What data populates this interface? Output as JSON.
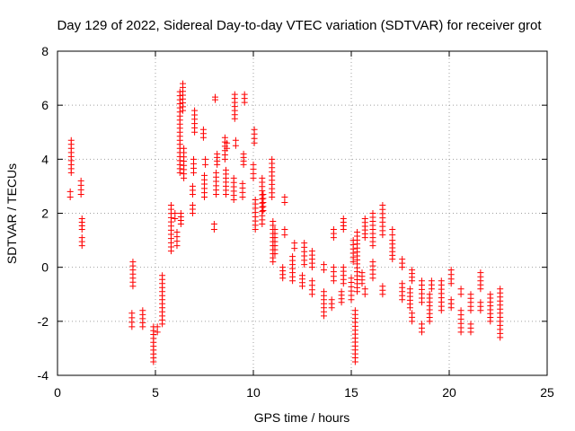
{
  "chart_data": {
    "type": "scatter",
    "title": "Day 129 of 2022, Sidereal Day-to-day VTEC variation (SDTVAR) for receiver grot",
    "xlabel": "GPS time / hours",
    "ylabel": "SDTVAR / TECUs",
    "xlim": [
      0,
      25
    ],
    "ylim": [
      -4,
      8
    ],
    "xticks": [
      0,
      5,
      10,
      15,
      20,
      25
    ],
    "yticks": [
      -4,
      -2,
      0,
      2,
      4,
      6,
      8
    ],
    "xtick_labels": [
      "0",
      "5",
      "10",
      "15",
      "20",
      "25"
    ],
    "ytick_labels": [
      "-4",
      "-2",
      "0",
      "2",
      "4",
      "6",
      "8"
    ],
    "grid": true,
    "marker": "plus",
    "color": "#ff0000",
    "segments": [
      {
        "x": 0.65,
        "y_from": 2.6,
        "y_to": 2.8
      },
      {
        "x": 0.7,
        "y_from": 3.5,
        "y_to": 4.7
      },
      {
        "x": 1.2,
        "y_from": 2.7,
        "y_to": 3.2
      },
      {
        "x": 1.25,
        "y_from": 1.4,
        "y_to": 1.8
      },
      {
        "x": 1.25,
        "y_from": 0.8,
        "y_to": 1.1
      },
      {
        "x": 3.85,
        "y_from": -0.7,
        "y_to": 0.2
      },
      {
        "x": 3.8,
        "y_from": -2.2,
        "y_to": -1.7
      },
      {
        "x": 4.35,
        "y_from": -2.2,
        "y_to": -1.6
      },
      {
        "x": 4.9,
        "y_from": -3.5,
        "y_to": -2.2
      },
      {
        "x": 5.1,
        "y_from": -2.4,
        "y_to": -2.2
      },
      {
        "x": 5.35,
        "y_from": -2.1,
        "y_to": -0.3
      },
      {
        "x": 5.8,
        "y_from": 0.6,
        "y_to": 2.3
      },
      {
        "x": 6.0,
        "y_from": 1.8,
        "y_to": 2.0
      },
      {
        "x": 6.1,
        "y_from": 0.8,
        "y_to": 1.3
      },
      {
        "x": 6.25,
        "y_from": 3.5,
        "y_to": 6.5
      },
      {
        "x": 6.4,
        "y_from": 5.8,
        "y_to": 6.8
      },
      {
        "x": 6.45,
        "y_from": 3.3,
        "y_to": 4.4
      },
      {
        "x": 6.3,
        "y_from": 1.6,
        "y_to": 2.0
      },
      {
        "x": 6.9,
        "y_from": 2.0,
        "y_to": 2.3
      },
      {
        "x": 6.9,
        "y_from": 2.7,
        "y_to": 3.0
      },
      {
        "x": 6.95,
        "y_from": 3.5,
        "y_to": 4.0
      },
      {
        "x": 7.0,
        "y_from": 5.0,
        "y_to": 5.8
      },
      {
        "x": 7.45,
        "y_from": 4.8,
        "y_to": 5.1
      },
      {
        "x": 7.5,
        "y_from": 2.6,
        "y_to": 3.4
      },
      {
        "x": 7.55,
        "y_from": 3.8,
        "y_to": 4.0
      },
      {
        "x": 8.0,
        "y_from": 1.4,
        "y_to": 1.6
      },
      {
        "x": 8.1,
        "y_from": 2.7,
        "y_to": 3.5
      },
      {
        "x": 8.15,
        "y_from": 3.8,
        "y_to": 4.2
      },
      {
        "x": 8.05,
        "y_from": 6.2,
        "y_to": 6.3
      },
      {
        "x": 8.55,
        "y_from": 4.0,
        "y_to": 4.8
      },
      {
        "x": 8.6,
        "y_from": 2.7,
        "y_to": 3.6
      },
      {
        "x": 8.65,
        "y_from": 4.4,
        "y_to": 4.6
      },
      {
        "x": 9.0,
        "y_from": 2.5,
        "y_to": 3.3
      },
      {
        "x": 9.05,
        "y_from": 5.5,
        "y_to": 6.4
      },
      {
        "x": 9.1,
        "y_from": 4.5,
        "y_to": 4.7
      },
      {
        "x": 9.45,
        "y_from": 2.6,
        "y_to": 3.1
      },
      {
        "x": 9.5,
        "y_from": 3.8,
        "y_to": 4.2
      },
      {
        "x": 9.55,
        "y_from": 6.1,
        "y_to": 6.4
      },
      {
        "x": 10.0,
        "y_from": 3.3,
        "y_to": 3.8
      },
      {
        "x": 10.05,
        "y_from": 4.6,
        "y_to": 5.1
      },
      {
        "x": 10.1,
        "y_from": 1.4,
        "y_to": 2.5
      },
      {
        "x": 10.45,
        "y_from": 1.6,
        "y_to": 3.3
      },
      {
        "x": 10.5,
        "y_from": 2.1,
        "y_to": 2.7
      },
      {
        "x": 10.95,
        "y_from": 2.6,
        "y_to": 4.0
      },
      {
        "x": 11.0,
        "y_from": 0.2,
        "y_to": 1.7
      },
      {
        "x": 11.1,
        "y_from": 0.5,
        "y_to": 1.4
      },
      {
        "x": 11.5,
        "y_from": -0.4,
        "y_to": 0.0
      },
      {
        "x": 11.6,
        "y_from": 1.2,
        "y_to": 1.4
      },
      {
        "x": 11.6,
        "y_from": 2.4,
        "y_to": 2.6
      },
      {
        "x": 12.0,
        "y_from": -0.5,
        "y_to": 0.4
      },
      {
        "x": 12.1,
        "y_from": 0.7,
        "y_to": 0.9
      },
      {
        "x": 12.5,
        "y_from": -0.7,
        "y_to": -0.3
      },
      {
        "x": 12.6,
        "y_from": 0.1,
        "y_to": 0.9
      },
      {
        "x": 13.0,
        "y_from": -1.0,
        "y_to": -0.5
      },
      {
        "x": 13.0,
        "y_from": 0.0,
        "y_to": 0.6
      },
      {
        "x": 13.6,
        "y_from": -1.8,
        "y_to": -0.9
      },
      {
        "x": 13.6,
        "y_from": -0.1,
        "y_to": 0.1
      },
      {
        "x": 14.0,
        "y_from": -1.5,
        "y_to": -1.2
      },
      {
        "x": 14.1,
        "y_from": -0.5,
        "y_to": 0.0
      },
      {
        "x": 14.1,
        "y_from": 1.1,
        "y_to": 1.4
      },
      {
        "x": 14.5,
        "y_from": -1.3,
        "y_to": -0.9
      },
      {
        "x": 14.6,
        "y_from": -0.6,
        "y_to": 0.0
      },
      {
        "x": 14.6,
        "y_from": 1.4,
        "y_to": 1.8
      },
      {
        "x": 15.0,
        "y_from": -1.2,
        "y_to": -0.4
      },
      {
        "x": 15.1,
        "y_from": 0.2,
        "y_to": 1.0
      },
      {
        "x": 15.2,
        "y_from": -3.5,
        "y_to": -1.6
      },
      {
        "x": 15.3,
        "y_from": -0.9,
        "y_to": 1.3
      },
      {
        "x": 15.55,
        "y_from": -0.6,
        "y_to": -0.2
      },
      {
        "x": 15.7,
        "y_from": 1.1,
        "y_to": 1.8
      },
      {
        "x": 15.7,
        "y_from": -1.0,
        "y_to": -0.8
      },
      {
        "x": 16.1,
        "y_from": -0.4,
        "y_to": 0.2
      },
      {
        "x": 16.1,
        "y_from": 0.8,
        "y_to": 2.0
      },
      {
        "x": 16.6,
        "y_from": 1.2,
        "y_to": 2.3
      },
      {
        "x": 16.6,
        "y_from": -1.0,
        "y_to": -0.7
      },
      {
        "x": 17.1,
        "y_from": 0.3,
        "y_to": 1.0
      },
      {
        "x": 17.1,
        "y_from": 1.2,
        "y_to": 1.4
      },
      {
        "x": 17.6,
        "y_from": -1.2,
        "y_to": -0.6
      },
      {
        "x": 17.6,
        "y_from": 0.0,
        "y_to": 0.3
      },
      {
        "x": 18.0,
        "y_from": -1.5,
        "y_to": -0.8
      },
      {
        "x": 18.1,
        "y_from": -2.0,
        "y_to": -1.7
      },
      {
        "x": 18.1,
        "y_from": -0.5,
        "y_to": -0.1
      },
      {
        "x": 18.6,
        "y_from": -2.4,
        "y_to": -2.1
      },
      {
        "x": 18.6,
        "y_from": -1.3,
        "y_to": -0.5
      },
      {
        "x": 19.0,
        "y_from": -2.0,
        "y_to": -1.0
      },
      {
        "x": 19.1,
        "y_from": -0.8,
        "y_to": -0.5
      },
      {
        "x": 19.6,
        "y_from": -1.6,
        "y_to": -0.5
      },
      {
        "x": 20.1,
        "y_from": -1.5,
        "y_to": -1.2
      },
      {
        "x": 20.1,
        "y_from": -0.6,
        "y_to": -0.1
      },
      {
        "x": 20.6,
        "y_from": -2.4,
        "y_to": -1.6
      },
      {
        "x": 20.6,
        "y_from": -1.0,
        "y_to": -0.8
      },
      {
        "x": 21.1,
        "y_from": -2.4,
        "y_to": -2.1
      },
      {
        "x": 21.1,
        "y_from": -1.6,
        "y_to": -1.0
      },
      {
        "x": 21.6,
        "y_from": -1.6,
        "y_to": -1.3
      },
      {
        "x": 21.6,
        "y_from": -0.8,
        "y_to": -0.2
      },
      {
        "x": 22.1,
        "y_from": -2.0,
        "y_to": -1.0
      },
      {
        "x": 22.6,
        "y_from": -2.6,
        "y_to": -0.8
      }
    ]
  }
}
